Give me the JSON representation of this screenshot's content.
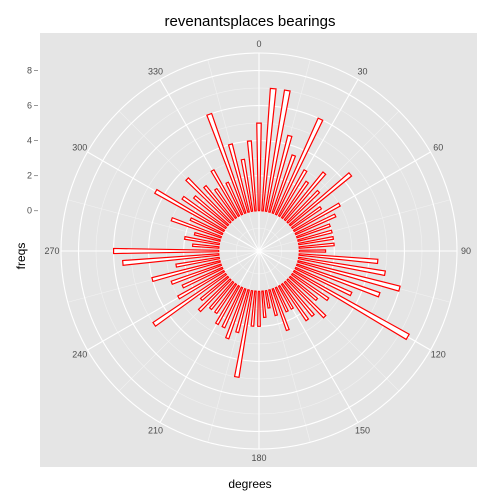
{
  "chart_data": {
    "type": "bar",
    "coord": "polar",
    "title": "revenantsplaces bearings",
    "xlabel": "degrees",
    "ylabel": "freqs",
    "x_ticks": [
      "0",
      "30",
      "60",
      "90",
      "120",
      "150",
      "180",
      "210",
      "240",
      "270",
      "300",
      "330"
    ],
    "y_ticks": [
      "0",
      "2",
      "4",
      "6",
      "8"
    ],
    "ylim": [
      -2.3,
      9.0
    ],
    "grid": true,
    "bar_color": "#ff0000",
    "panel_color": "#e5e5e5",
    "grid_color": "#ffffff",
    "x": [
      0,
      5,
      10,
      15,
      20,
      25,
      30,
      35,
      40,
      45,
      50,
      55,
      60,
      65,
      70,
      75,
      80,
      85,
      90,
      95,
      100,
      105,
      110,
      115,
      120,
      125,
      130,
      135,
      140,
      145,
      150,
      155,
      160,
      165,
      170,
      175,
      180,
      185,
      190,
      195,
      200,
      205,
      210,
      215,
      220,
      225,
      230,
      235,
      240,
      245,
      250,
      255,
      260,
      265,
      270,
      275,
      280,
      285,
      290,
      295,
      300,
      305,
      310,
      315,
      320,
      325,
      330,
      335,
      340,
      345,
      350,
      355
    ],
    "values": [
      5.0,
      7.0,
      7.0,
      4.5,
      3.5,
      6.0,
      3.0,
      2.5,
      3.5,
      2.5,
      4.5,
      2.0,
      3.0,
      2.5,
      2.0,
      2.0,
      2.0,
      2.0,
      1.5,
      4.5,
      5.0,
      6.0,
      5.0,
      3.5,
      7.5,
      2.5,
      2.0,
      3.0,
      2.5,
      2.5,
      1.5,
      1.5,
      2.5,
      1.5,
      1.0,
      1.5,
      2.0,
      2.0,
      5.0,
      2.5,
      3.0,
      2.5,
      2.5,
      2.0,
      2.0,
      2.5,
      2.0,
      5.0,
      3.0,
      2.5,
      3.0,
      4.0,
      2.5,
      5.5,
      6.0,
      1.5,
      2.0,
      1.5,
      3.0,
      2.0,
      4.5,
      3.0,
      2.5,
      3.5,
      2.5,
      2.0,
      3.0,
      2.0,
      6.0,
      4.0,
      3.0,
      4.0
    ]
  }
}
